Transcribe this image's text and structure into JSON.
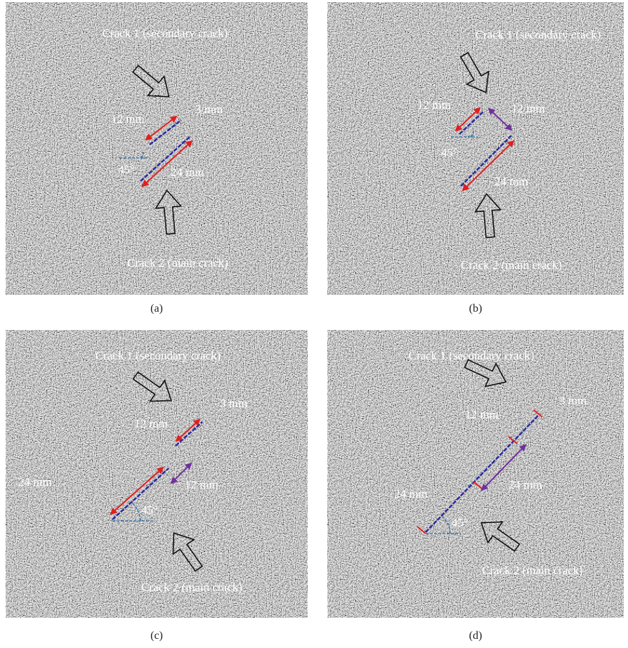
{
  "panels": [
    {
      "caption": "(a)",
      "crack1": "Crack 1 (secondary crack)",
      "crack2": "Crack 2 (main crack)",
      "dims": [
        "12 mm",
        "3 mm",
        "24 mm",
        "45°"
      ]
    },
    {
      "caption": "(b)",
      "crack1": "Crack 1 (secondary crack)",
      "crack2": "Crack 2 (main crack)",
      "dims": [
        "12 mm",
        "12 mm",
        "45°",
        "24 mm"
      ]
    },
    {
      "caption": "(c)",
      "crack1": "Crack 1 (secondary crack)",
      "crack2": "Crack 2 (main crack)",
      "dims": [
        "3 mm",
        "12 mm",
        "24 mm",
        "12 mm",
        "45°"
      ]
    },
    {
      "caption": "(d)",
      "crack1": "Crack 1 (secondary crack)",
      "crack2": "Crack 2 (main crack)",
      "dims": [
        "3 mm",
        "12 mm",
        "24 mm",
        "24 mm",
        "45°"
      ]
    }
  ]
}
